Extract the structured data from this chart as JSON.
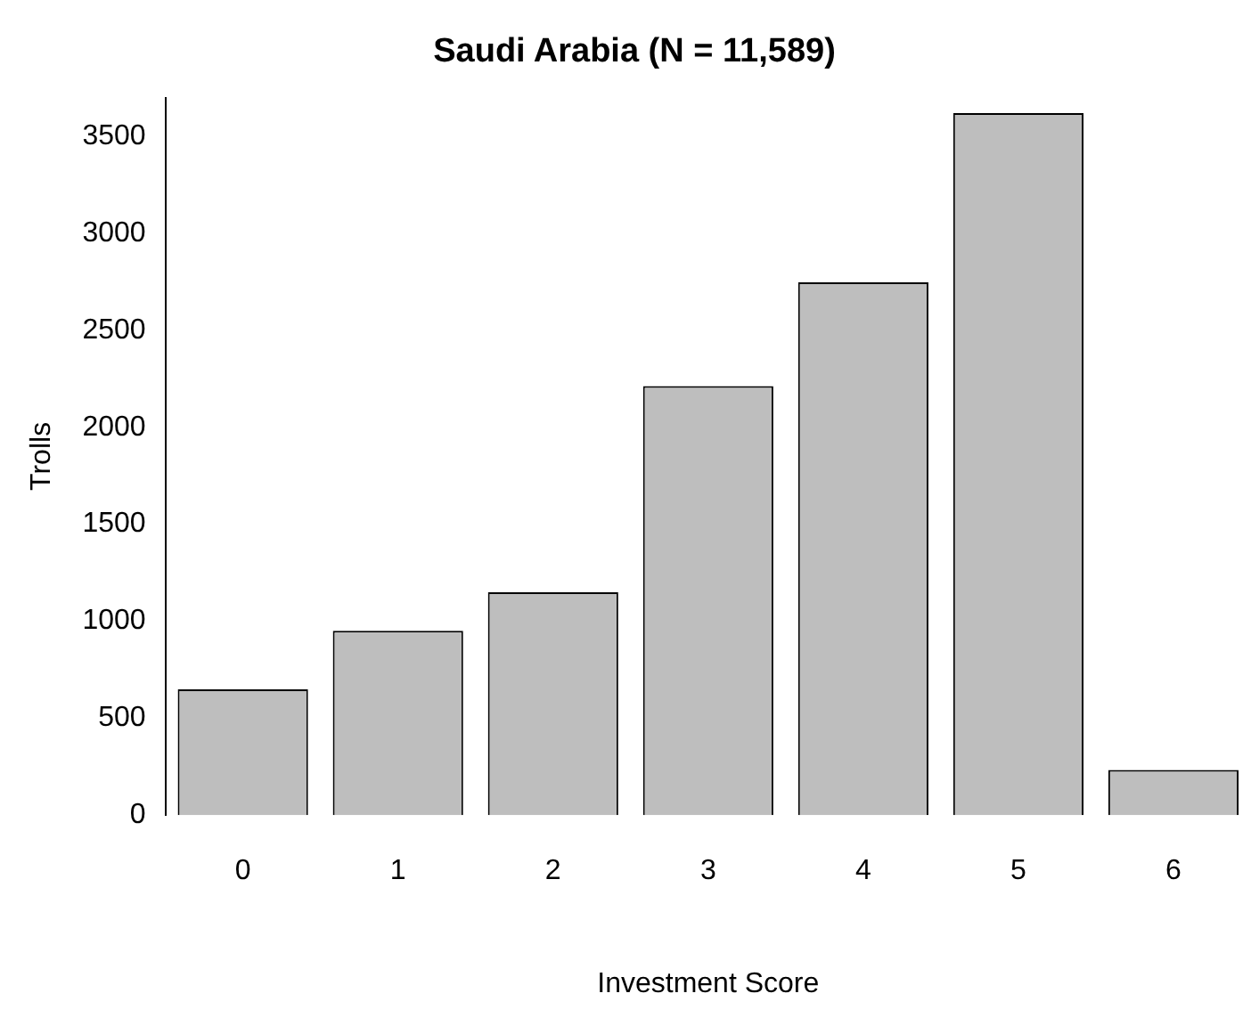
{
  "chart_data": {
    "type": "bar",
    "title": "Saudi Arabia (N = 11,589)",
    "xlabel": "Investment Score",
    "ylabel": "Trolls",
    "categories": [
      "0",
      "1",
      "2",
      "3",
      "4",
      "5",
      "6"
    ],
    "values": [
      648,
      950,
      1149,
      2212,
      2748,
      3620,
      233
    ],
    "color": "#bebebe",
    "ylim": [
      0,
      3700
    ],
    "yticks": [
      0,
      500,
      1000,
      1500,
      2000,
      2500,
      3000,
      3500
    ],
    "grid": false,
    "legend": false
  }
}
